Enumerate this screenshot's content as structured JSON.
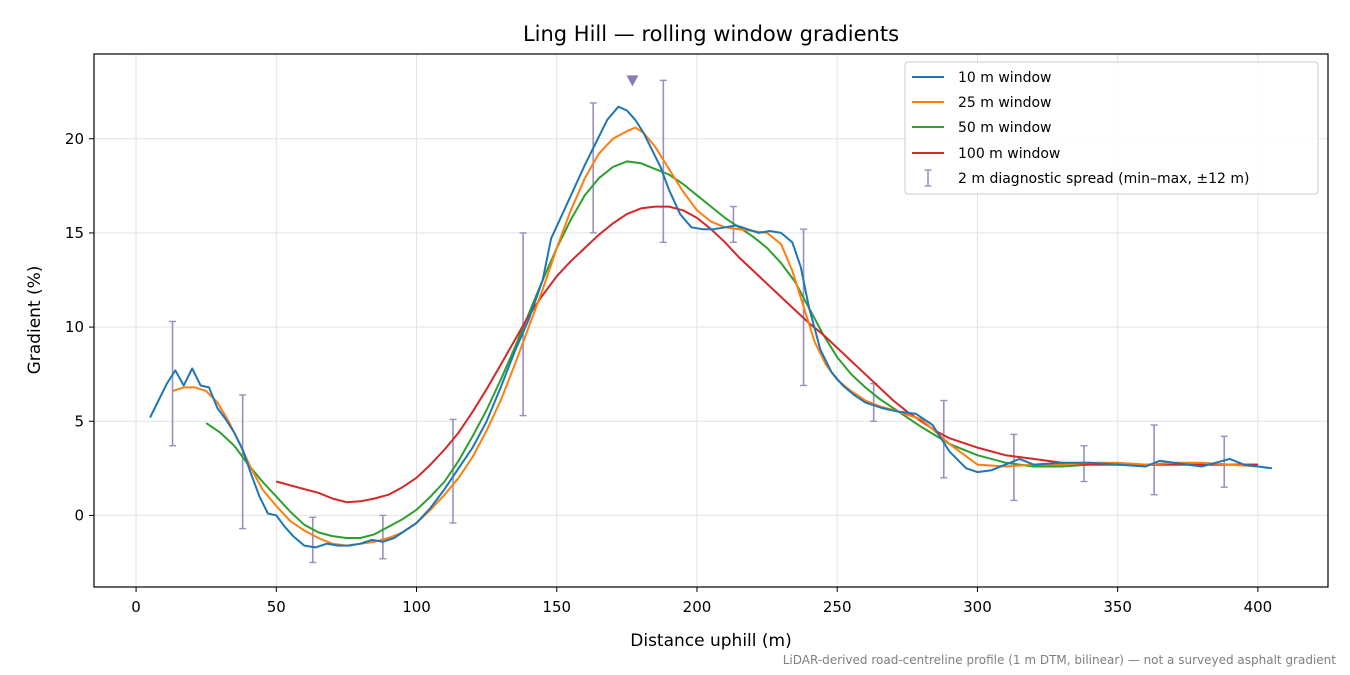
{
  "chart_data": {
    "type": "line",
    "title": "Ling Hill — rolling window gradients",
    "xlabel": "Distance uphill (m)",
    "ylabel": "Gradient (%)",
    "xlim": [
      -15,
      425
    ],
    "ylim": [
      -3.8,
      24.5
    ],
    "xticks": [
      0,
      50,
      100,
      150,
      200,
      250,
      300,
      350,
      400
    ],
    "yticks": [
      0,
      5,
      10,
      15,
      20
    ],
    "grid": true,
    "legend_position": "top-right",
    "footnote": "LiDAR-derived road-centreline profile (1 m DTM, bilinear) — not a surveyed asphalt gradient",
    "series": [
      {
        "name": "10 m window",
        "color": "#1f77b4",
        "x": [
          5,
          8,
          11,
          14,
          17,
          20,
          23,
          26,
          29,
          32,
          35,
          38,
          41,
          44,
          47,
          50,
          53,
          56,
          60,
          64,
          68,
          72,
          76,
          80,
          84,
          88,
          92,
          96,
          100,
          105,
          110,
          115,
          120,
          125,
          130,
          135,
          140,
          145,
          148,
          152,
          156,
          160,
          164,
          168,
          172,
          175,
          178,
          181,
          184,
          187,
          190,
          194,
          198,
          202,
          206,
          210,
          214,
          218,
          222,
          226,
          230,
          234,
          237,
          240,
          244,
          248,
          252,
          256,
          260,
          266,
          272,
          278,
          284,
          290,
          296,
          300,
          305,
          310,
          315,
          320,
          330,
          340,
          350,
          360,
          365,
          370,
          375,
          380,
          385,
          390,
          395,
          400,
          405
        ],
        "y": [
          5.2,
          6.1,
          7.0,
          7.7,
          6.9,
          7.8,
          6.9,
          6.8,
          5.7,
          5.1,
          4.4,
          3.5,
          2.2,
          1.0,
          0.1,
          0.0,
          -0.6,
          -1.1,
          -1.6,
          -1.7,
          -1.5,
          -1.6,
          -1.6,
          -1.5,
          -1.3,
          -1.4,
          -1.2,
          -0.8,
          -0.4,
          0.4,
          1.4,
          2.5,
          3.6,
          5.0,
          6.8,
          8.7,
          10.4,
          12.5,
          14.7,
          16.0,
          17.3,
          18.6,
          19.8,
          21.0,
          21.7,
          21.5,
          21.0,
          20.3,
          19.4,
          18.5,
          17.3,
          16.0,
          15.3,
          15.2,
          15.2,
          15.3,
          15.4,
          15.2,
          15.0,
          15.1,
          15.0,
          14.5,
          13.2,
          11.0,
          8.8,
          7.6,
          6.9,
          6.4,
          6.0,
          5.7,
          5.5,
          5.4,
          4.8,
          3.4,
          2.5,
          2.3,
          2.4,
          2.7,
          3.0,
          2.7,
          2.8,
          2.8,
          2.7,
          2.6,
          2.9,
          2.8,
          2.7,
          2.6,
          2.8,
          3.0,
          2.7,
          2.6,
          2.5
        ]
      },
      {
        "name": "25 m window",
        "color": "#ff7f0e",
        "x": [
          13,
          17,
          21,
          25,
          29,
          33,
          37,
          41,
          45,
          50,
          55,
          60,
          65,
          70,
          75,
          80,
          85,
          90,
          95,
          100,
          105,
          110,
          115,
          120,
          125,
          130,
          135,
          140,
          145,
          150,
          155,
          160,
          165,
          170,
          175,
          178,
          181,
          185,
          190,
          195,
          200,
          205,
          210,
          215,
          220,
          225,
          230,
          234,
          238,
          242,
          246,
          250,
          255,
          260,
          265,
          270,
          280,
          290,
          300,
          310,
          320,
          330,
          340,
          350,
          360,
          370,
          380,
          390,
          400
        ],
        "y": [
          6.6,
          6.8,
          6.8,
          6.6,
          6.0,
          5.0,
          3.8,
          2.5,
          1.4,
          0.5,
          -0.3,
          -0.8,
          -1.2,
          -1.5,
          -1.6,
          -1.5,
          -1.4,
          -1.2,
          -0.9,
          -0.4,
          0.3,
          1.1,
          2.0,
          3.1,
          4.5,
          6.1,
          8.0,
          10.0,
          12.0,
          14.2,
          16.2,
          17.9,
          19.2,
          20.0,
          20.4,
          20.6,
          20.3,
          19.6,
          18.4,
          17.2,
          16.2,
          15.6,
          15.3,
          15.2,
          15.1,
          15.0,
          14.4,
          13.0,
          11.1,
          9.2,
          8.0,
          7.2,
          6.6,
          6.1,
          5.8,
          5.6,
          5.1,
          3.8,
          2.7,
          2.6,
          2.7,
          2.7,
          2.8,
          2.8,
          2.7,
          2.8,
          2.8,
          2.7,
          2.6
        ]
      },
      {
        "name": "50 m window",
        "color": "#2ca02c",
        "x": [
          25,
          30,
          35,
          40,
          45,
          50,
          55,
          60,
          65,
          70,
          75,
          80,
          85,
          90,
          95,
          100,
          105,
          110,
          115,
          120,
          125,
          130,
          135,
          140,
          145,
          150,
          155,
          160,
          165,
          170,
          175,
          180,
          185,
          190,
          195,
          200,
          205,
          210,
          215,
          220,
          225,
          230,
          235,
          240,
          245,
          250,
          255,
          260,
          265,
          270,
          280,
          290,
          300,
          310,
          320,
          330,
          340,
          350,
          360,
          370,
          380,
          390,
          400
        ],
        "y": [
          4.9,
          4.4,
          3.7,
          2.7,
          1.8,
          1.0,
          0.2,
          -0.5,
          -0.9,
          -1.1,
          -1.2,
          -1.2,
          -1.0,
          -0.6,
          -0.2,
          0.3,
          1.0,
          1.8,
          2.9,
          4.2,
          5.6,
          7.2,
          8.9,
          10.7,
          12.5,
          14.2,
          15.7,
          17.0,
          17.9,
          18.5,
          18.8,
          18.7,
          18.4,
          18.1,
          17.6,
          17.0,
          16.4,
          15.8,
          15.3,
          14.8,
          14.2,
          13.4,
          12.4,
          11.0,
          9.6,
          8.4,
          7.5,
          6.8,
          6.2,
          5.7,
          4.7,
          3.8,
          3.2,
          2.8,
          2.6,
          2.6,
          2.7,
          2.7,
          2.7,
          2.7,
          2.7,
          2.7,
          2.7
        ]
      },
      {
        "name": "100 m window",
        "color": "#d62728",
        "x": [
          50,
          55,
          60,
          65,
          70,
          75,
          80,
          85,
          90,
          95,
          100,
          105,
          110,
          115,
          120,
          125,
          130,
          135,
          140,
          145,
          150,
          155,
          160,
          165,
          170,
          175,
          180,
          185,
          190,
          195,
          200,
          205,
          210,
          215,
          220,
          225,
          230,
          235,
          240,
          245,
          250,
          255,
          260,
          265,
          270,
          275,
          280,
          285,
          290,
          300,
          310,
          320,
          330,
          340,
          350,
          360,
          370,
          380,
          390,
          400
        ],
        "y": [
          1.8,
          1.6,
          1.4,
          1.2,
          0.9,
          0.7,
          0.75,
          0.9,
          1.1,
          1.5,
          2.0,
          2.7,
          3.5,
          4.4,
          5.5,
          6.7,
          8.0,
          9.3,
          10.6,
          11.7,
          12.7,
          13.5,
          14.2,
          14.9,
          15.5,
          16.0,
          16.3,
          16.4,
          16.4,
          16.2,
          15.8,
          15.2,
          14.5,
          13.7,
          13.0,
          12.3,
          11.6,
          10.9,
          10.2,
          9.6,
          8.9,
          8.2,
          7.5,
          6.8,
          6.1,
          5.5,
          5.0,
          4.5,
          4.1,
          3.6,
          3.2,
          3.0,
          2.8,
          2.7,
          2.7,
          2.7,
          2.7,
          2.7,
          2.7,
          2.7
        ]
      }
    ],
    "diagnostic_spread": {
      "name": "2 m diagnostic spread (min–max, ±12 m)",
      "color": "#9a8fbf",
      "points": [
        {
          "x": 13,
          "min": 3.7,
          "max": 10.3
        },
        {
          "x": 38,
          "min": -0.7,
          "max": 6.4
        },
        {
          "x": 63,
          "min": -2.5,
          "max": -0.1
        },
        {
          "x": 88,
          "min": -2.3,
          "max": 0.0
        },
        {
          "x": 113,
          "min": -0.4,
          "max": 5.1
        },
        {
          "x": 138,
          "min": 5.3,
          "max": 15.0
        },
        {
          "x": 163,
          "min": 15.0,
          "max": 21.9
        },
        {
          "x": 188,
          "min": 14.5,
          "max": 23.1
        },
        {
          "x": 213,
          "min": 14.5,
          "max": 16.4
        },
        {
          "x": 238,
          "min": 6.9,
          "max": 15.2
        },
        {
          "x": 263,
          "min": 5.0,
          "max": 7.0
        },
        {
          "x": 288,
          "min": 2.0,
          "max": 6.1
        },
        {
          "x": 313,
          "min": 0.8,
          "max": 4.3
        },
        {
          "x": 338,
          "min": 1.8,
          "max": 3.7
        },
        {
          "x": 363,
          "min": 1.1,
          "max": 4.8
        },
        {
          "x": 388,
          "min": 1.5,
          "max": 4.2
        }
      ]
    },
    "peak_marker": {
      "x": 177,
      "y": 23.1,
      "color": "#8c7bb5"
    }
  }
}
